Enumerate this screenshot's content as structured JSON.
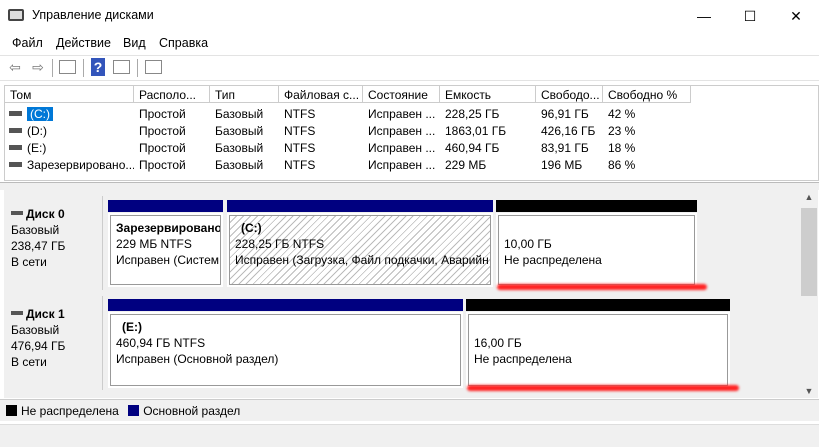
{
  "window": {
    "title": "Управление дисками",
    "minimize": "—",
    "maximize": "☐",
    "close": "✕"
  },
  "menu": [
    "Файл",
    "Действие",
    "Вид",
    "Справка"
  ],
  "toolbar": {
    "back": "⇦",
    "forward": "⇨",
    "help": "?"
  },
  "table": {
    "headers": [
      "Том",
      "Располо...",
      "Тип",
      "Файловая с...",
      "Состояние",
      "Емкость",
      "Свободо...",
      "Свободно %"
    ],
    "rows": [
      [
        "(C:)",
        "Простой",
        "Базовый",
        "NTFS",
        "Исправен ...",
        "228,25 ГБ",
        "96,91 ГБ",
        "42 %"
      ],
      [
        "(D:)",
        "Простой",
        "Базовый",
        "NTFS",
        "Исправен ...",
        "1863,01 ГБ",
        "426,16 ГБ",
        "23 %"
      ],
      [
        "(E:)",
        "Простой",
        "Базовый",
        "NTFS",
        "Исправен ...",
        "460,94 ГБ",
        "83,91 ГБ",
        "18 %"
      ],
      [
        "Зарезервировано...",
        "Простой",
        "Базовый",
        "NTFS",
        "Исправен ...",
        "229 МБ",
        "196 МБ",
        "86 %"
      ]
    ]
  },
  "disks": [
    {
      "name": "Диск 0",
      "type": "Базовый",
      "size": "238,47 ГБ",
      "status": "В сети",
      "partitions": [
        {
          "name": "Зарезервировано",
          "size": "229 МБ NTFS",
          "status": "Исправен (Систем"
        },
        {
          "name": "(C:)",
          "size": "228,25 ГБ NTFS",
          "status": "Исправен (Загрузка, Файл подкачки, Аварийн"
        },
        {
          "name": "",
          "size": "10,00 ГБ",
          "status": "Не распределена"
        }
      ]
    },
    {
      "name": "Диск 1",
      "type": "Базовый",
      "size": "476,94 ГБ",
      "status": "В сети",
      "partitions": [
        {
          "name": "(E:)",
          "size": "460,94 ГБ NTFS",
          "status": "Исправен (Основной раздел)"
        },
        {
          "name": "",
          "size": "16,00 ГБ",
          "status": "Не распределена"
        }
      ]
    }
  ],
  "legend": [
    {
      "label": "Не распределена",
      "color": "#000000"
    },
    {
      "label": "Основной раздел",
      "color": "#000080"
    }
  ],
  "colors": {
    "primary": "#000080",
    "unallocated": "#000000",
    "annotation": "#ff2020"
  }
}
